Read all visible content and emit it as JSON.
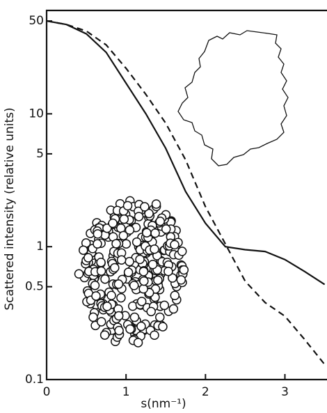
{
  "chart_data": {
    "type": "line",
    "x_label": "s(nm⁻¹)",
    "y_label": "Scattered intensity (relative units)",
    "x": [
      0,
      0.25,
      0.5,
      0.75,
      1,
      1.25,
      1.5,
      1.75,
      2,
      2.25,
      2.5,
      2.75,
      3,
      3.25,
      3.5
    ],
    "series": [
      {
        "color": "#111111",
        "style": "solid",
        "values": [
          50,
          47,
          40,
          29,
          17,
          10,
          5.5,
          2.6,
          1.5,
          1.0,
          0.95,
          0.92,
          0.8,
          0.65,
          0.52
        ]
      },
      {
        "color": "#111111",
        "style": "dashed",
        "values": [
          50,
          47,
          42,
          33,
          22,
          14,
          8.5,
          4.5,
          2.0,
          1.05,
          0.55,
          0.38,
          0.3,
          0.2,
          0.13
        ]
      }
    ],
    "xlim": [
      0,
      3.53
    ],
    "xticks": [
      0,
      1,
      2,
      3
    ],
    "ylim": [
      0.1,
      60
    ],
    "yticks": [
      0.1,
      0.5,
      1,
      5,
      10,
      50
    ],
    "log_y": true
  }
}
